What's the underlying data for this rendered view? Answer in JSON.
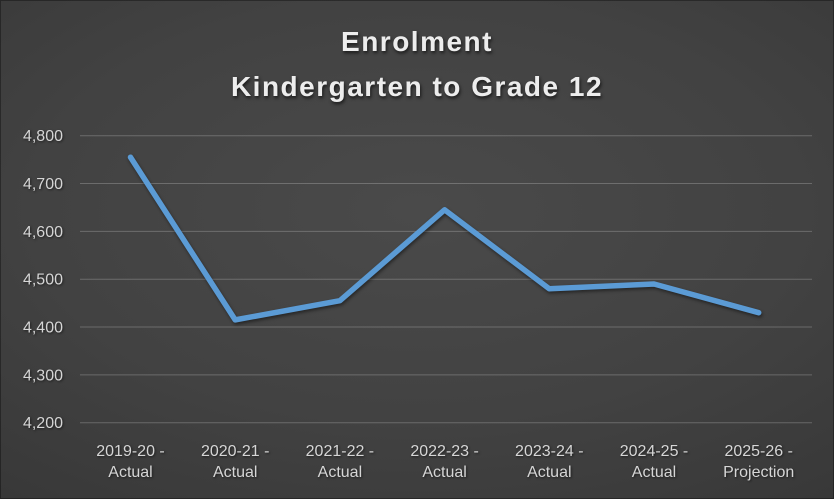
{
  "chart_data": {
    "type": "line",
    "title": "Enrolment Kindergarten to Grade 12",
    "title_lines": [
      "Enrolment",
      "Kindergarten to Grade 12"
    ],
    "categories": [
      "2019-20 - Actual",
      "2020-21 - Actual",
      "2021-22 - Actual",
      "2022-23 - Actual",
      "2023-24 - Actual",
      "2024-25 - Actual",
      "2025-26 - Projection"
    ],
    "x_tick_label_lines": [
      [
        "2019-20 -",
        "Actual"
      ],
      [
        "2020-21 -",
        "Actual"
      ],
      [
        "2021-22 -",
        "Actual"
      ],
      [
        "2022-23 -",
        "Actual"
      ],
      [
        "2023-24 -",
        "Actual"
      ],
      [
        "2024-25 -",
        "Actual"
      ],
      [
        "2025-26 -",
        "Projection"
      ]
    ],
    "values": [
      4755,
      4415,
      4455,
      4645,
      4480,
      4490,
      4430
    ],
    "ylim": [
      4200,
      4800
    ],
    "ytick_step": 100,
    "ytick_labels": [
      "4,200",
      "4,300",
      "4,400",
      "4,500",
      "4,600",
      "4,700",
      "4,800"
    ],
    "grid": true,
    "legend": "none",
    "xlabel": "",
    "ylabel": "",
    "colors": {
      "line": "#5b9bd5",
      "gridline": "rgba(255,255,255,0.22)",
      "text": "#d6d6d6",
      "title_text": "#ededed",
      "background_center": "#4a4a4a",
      "background_edge": "#2b2b2b"
    }
  }
}
